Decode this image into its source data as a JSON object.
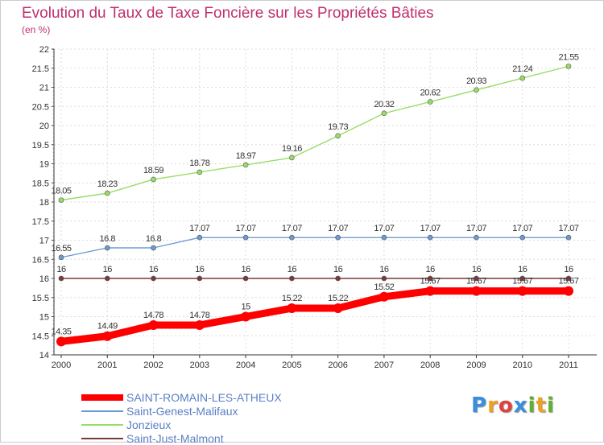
{
  "chart_data": {
    "type": "line",
    "title": "Evolution du Taux de Taxe Foncière sur les Propriétés Bâties",
    "unit_label": "(en %)",
    "x": [
      "2000",
      "2001",
      "2002",
      "2003",
      "2004",
      "2005",
      "2006",
      "2007",
      "2008",
      "2009",
      "2010",
      "2011"
    ],
    "ylim": [
      14,
      22
    ],
    "yticks": [
      "14",
      "14.5",
      "15",
      "15.5",
      "16",
      "16.5",
      "17",
      "17.5",
      "18",
      "18.5",
      "19",
      "19.5",
      "20",
      "20.5",
      "21",
      "21.5",
      "22"
    ],
    "grid": true,
    "legend_position": "bottom-left",
    "series": [
      {
        "name": "SAINT-ROMAIN-LES-ATHEUX",
        "color": "#ff0000",
        "values": [
          14.35,
          14.49,
          14.78,
          14.78,
          15,
          15.22,
          15.22,
          15.52,
          15.67,
          15.67,
          15.67,
          15.67
        ],
        "labels": [
          "14.35",
          "14.49",
          "14.78",
          "14.78",
          "15",
          "15.22",
          "15.22",
          "15.52",
          "15.67",
          "15.67",
          "15.67",
          "15.67"
        ]
      },
      {
        "name": "Saint-Genest-Malifaux",
        "color": "#6b9bd1",
        "values": [
          16.55,
          16.8,
          16.8,
          17.07,
          17.07,
          17.07,
          17.07,
          17.07,
          17.07,
          17.07,
          17.07,
          17.07
        ],
        "labels": [
          "16.55",
          "16.8",
          "16.8",
          "17.07",
          "17.07",
          "17.07",
          "17.07",
          "17.07",
          "17.07",
          "17.07",
          "17.07",
          "17.07"
        ]
      },
      {
        "name": "Jonzieux",
        "color": "#99dd66",
        "values": [
          18.05,
          18.23,
          18.59,
          18.78,
          18.97,
          19.16,
          19.73,
          20.32,
          20.62,
          20.93,
          21.24,
          21.55
        ],
        "labels": [
          "18.05",
          "18.23",
          "18.59",
          "18.78",
          "18.97",
          "19.16",
          "19.73",
          "20.32",
          "20.62",
          "20.93",
          "21.24",
          "21.55"
        ]
      },
      {
        "name": "Saint-Just-Malmont",
        "color": "#7a3a3a",
        "values": [
          16,
          16,
          16,
          16,
          16,
          16,
          16,
          16,
          16,
          16,
          16,
          16
        ],
        "labels": [
          "16",
          "16",
          "16",
          "16",
          "16",
          "16",
          "16",
          "16",
          "16",
          "16",
          "16",
          "16"
        ]
      }
    ]
  },
  "logo": {
    "letters": [
      "P",
      "r",
      "o",
      "x",
      "i",
      "t",
      "i"
    ],
    "colors": [
      "#3a8ee0",
      "#f0a020",
      "#e04040",
      "#3a8ee0",
      "#60b030",
      "#f0a020",
      "#60b030"
    ]
  }
}
